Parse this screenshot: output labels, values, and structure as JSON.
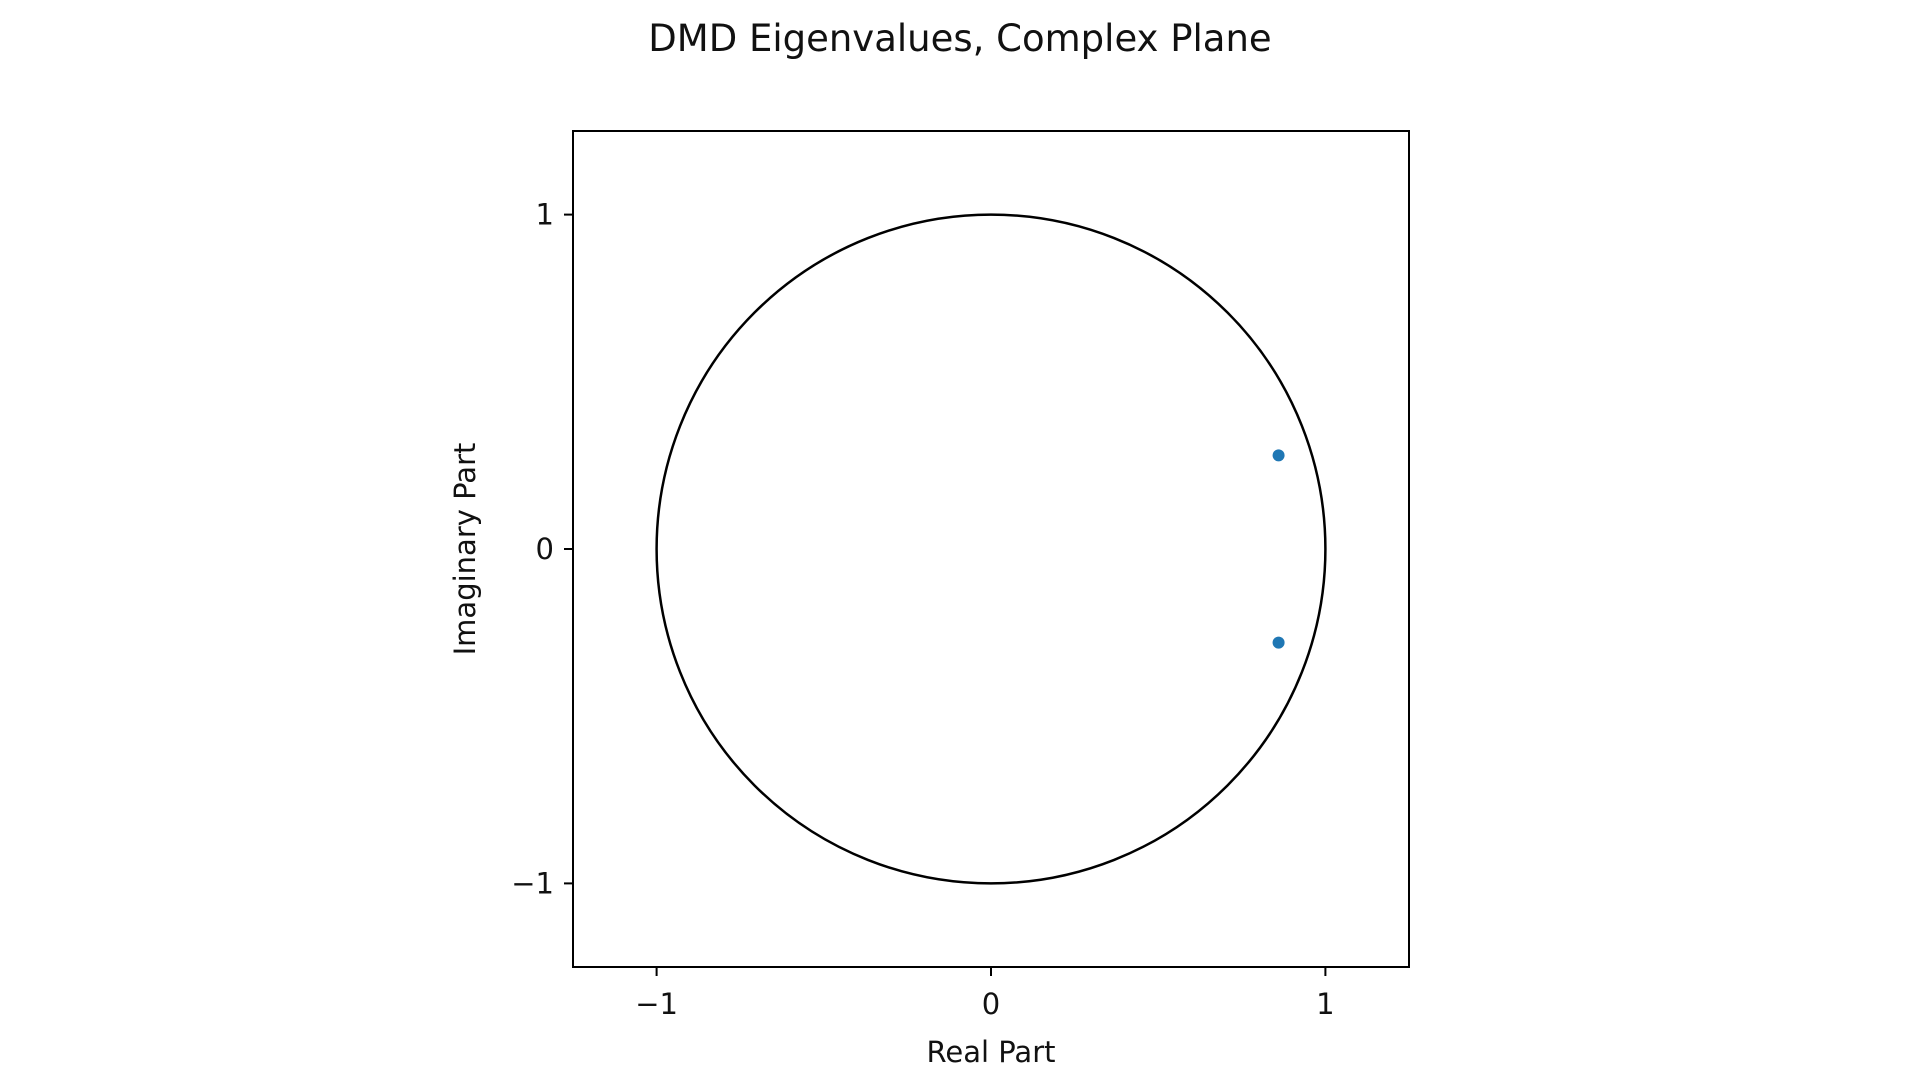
{
  "chart_data": {
    "type": "scatter",
    "title": "DMD Eigenvalues, Complex Plane",
    "xlabel": "Real Part",
    "ylabel": "Imaginary Part",
    "xlim": [
      -1.25,
      1.25
    ],
    "ylim": [
      -1.25,
      1.25
    ],
    "xticks": [
      -1,
      0,
      1
    ],
    "yticks": [
      -1,
      0,
      1
    ],
    "xtick_labels": [
      "−1",
      "0",
      "1"
    ],
    "ytick_labels": [
      "−1",
      "0",
      "1"
    ],
    "grid": false,
    "aspect": "equal",
    "reference_curve": {
      "type": "unit-circle",
      "radius": 1,
      "color": "#000000"
    },
    "series": [
      {
        "points": [
          {
            "x": 0.86,
            "y": 0.28
          },
          {
            "x": 0.86,
            "y": -0.28
          }
        ],
        "color": "#1f77b4"
      }
    ]
  }
}
